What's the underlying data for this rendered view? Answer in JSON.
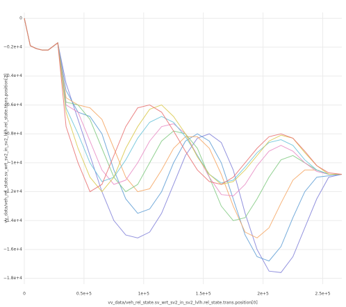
{
  "chart_data": {
    "type": "line",
    "x_label": "vv_data/veh_rel_state.sv_wrt_sv2_in_sv2_lvlh.rel_state.trans.position[0]",
    "y_label": "vv_data/veh_rel_state.sv_wrt_sv2_in_sv2_lvlh.rel_state.trans.position[2]",
    "x": [
      0,
      5000,
      10000,
      15000,
      20000,
      28000,
      35000,
      45000,
      55000,
      65000,
      75000,
      85000,
      95000,
      105000,
      115000,
      125000,
      135000,
      145000,
      155000,
      165000,
      175000,
      185000,
      195000,
      205000,
      215000,
      225000,
      235000,
      245000,
      255000,
      266000
    ],
    "series": [
      {
        "color": "#7f7fd8",
        "values": [
          0,
          -1900,
          -2100,
          -2200,
          -2200,
          -1700,
          -4500,
          -7000,
          -9500,
          -12000,
          -14000,
          -15000,
          -15200,
          -14800,
          -13500,
          -11500,
          -9500,
          -8300,
          -8000,
          -8600,
          -10500,
          -13500,
          -16000,
          -17500,
          -17600,
          -16500,
          -14500,
          -12500,
          -11000,
          -10800
        ]
      },
      {
        "color": "#5a9bd4",
        "values": [
          0,
          -1900,
          -2100,
          -2200,
          -2200,
          -1700,
          -5000,
          -6500,
          -6800,
          -8000,
          -10500,
          -12500,
          -13500,
          -13200,
          -12000,
          -10000,
          -8500,
          -8000,
          -8500,
          -10000,
          -12500,
          -15000,
          -16500,
          -16800,
          -15800,
          -13800,
          -12000,
          -11000,
          -10900,
          -10800
        ]
      },
      {
        "color": "#f4a460",
        "values": [
          0,
          -1900,
          -2100,
          -2200,
          -2200,
          -1700,
          -5500,
          -6000,
          -6200,
          -7000,
          -9000,
          -11000,
          -12000,
          -11800,
          -10500,
          -9000,
          -8200,
          -8200,
          -9000,
          -10800,
          -13000,
          -14800,
          -15200,
          -14500,
          -12800,
          -11200,
          -10500,
          -10500,
          -10800,
          -10800
        ]
      },
      {
        "color": "#7fc97f",
        "values": [
          0,
          -1900,
          -2100,
          -2200,
          -2200,
          -1700,
          -5800,
          -6000,
          -7000,
          -9000,
          -11000,
          -12000,
          -11500,
          -10000,
          -8500,
          -7800,
          -8000,
          -9000,
          -11000,
          -13000,
          -14000,
          -13800,
          -12500,
          -11000,
          -9800,
          -9500,
          -10000,
          -10500,
          -10800,
          -10800
        ]
      },
      {
        "color": "#e78ac3",
        "values": [
          0,
          -1900,
          -2100,
          -2200,
          -2200,
          -1700,
          -6000,
          -6500,
          -8500,
          -10500,
          -11500,
          -11200,
          -10000,
          -8500,
          -7500,
          -7300,
          -8000,
          -9500,
          -11000,
          -12200,
          -12300,
          -11500,
          -10200,
          -9200,
          -8800,
          -9200,
          -10000,
          -10600,
          -10800,
          -10800
        ]
      },
      {
        "color": "#66c2d8",
        "values": [
          0,
          -1900,
          -2100,
          -2200,
          -2200,
          -1700,
          -6200,
          -8000,
          -10000,
          -11300,
          -11000,
          -9800,
          -8300,
          -7200,
          -6800,
          -7200,
          -8200,
          -9500,
          -10800,
          -11400,
          -11200,
          -10300,
          -9300,
          -8600,
          -8400,
          -8800,
          -9800,
          -10500,
          -10800,
          -10800
        ]
      },
      {
        "color": "#d9c84a",
        "values": [
          0,
          -1900,
          -2100,
          -2200,
          -2200,
          -1700,
          -6500,
          -9000,
          -11000,
          -12000,
          -11000,
          -9000,
          -7500,
          -6300,
          -6000,
          -6800,
          -8000,
          -9600,
          -10800,
          -11500,
          -11300,
          -10500,
          -9500,
          -8500,
          -8100,
          -8300,
          -9300,
          -10200,
          -10800,
          -10800
        ]
      },
      {
        "color": "#e86f6f",
        "values": [
          0,
          -1900,
          -2100,
          -2200,
          -2200,
          -1700,
          -7500,
          -10000,
          -12000,
          -11500,
          -9500,
          -7500,
          -6200,
          -6000,
          -6500,
          -7800,
          -9200,
          -10500,
          -11300,
          -11500,
          -11000,
          -10000,
          -9000,
          -8200,
          -8000,
          -8300,
          -9200,
          -10200,
          -10700,
          -10800
        ]
      }
    ],
    "xlim": [
      0,
      266000
    ],
    "ylim": [
      -18400,
      400
    ],
    "xticks": [
      0,
      {
        "value": 50000,
        "label": "0.5e+5"
      },
      {
        "value": 100000,
        "label": "1e+5"
      },
      {
        "value": 150000,
        "label": "1.5e+5"
      },
      {
        "value": 200000,
        "label": "2e+5"
      },
      {
        "value": 250000,
        "label": "2.5e+5"
      }
    ],
    "yticks": [
      0,
      {
        "value": -2000,
        "label": "−0.2e+4"
      },
      {
        "value": -4000,
        "label": "−0.4e+4"
      },
      {
        "value": -6000,
        "label": "−0.6e+4"
      },
      {
        "value": -8000,
        "label": "−0.8e+4"
      },
      {
        "value": -10000,
        "label": "−1e+4"
      },
      {
        "value": -12000,
        "label": "−1.2e+4"
      },
      {
        "value": -14000,
        "label": "−1.4e+4"
      },
      {
        "value": -16000,
        "label": "−1.6e+4"
      },
      {
        "value": -18000,
        "label": "−1.8e+4"
      }
    ],
    "grid": true
  }
}
